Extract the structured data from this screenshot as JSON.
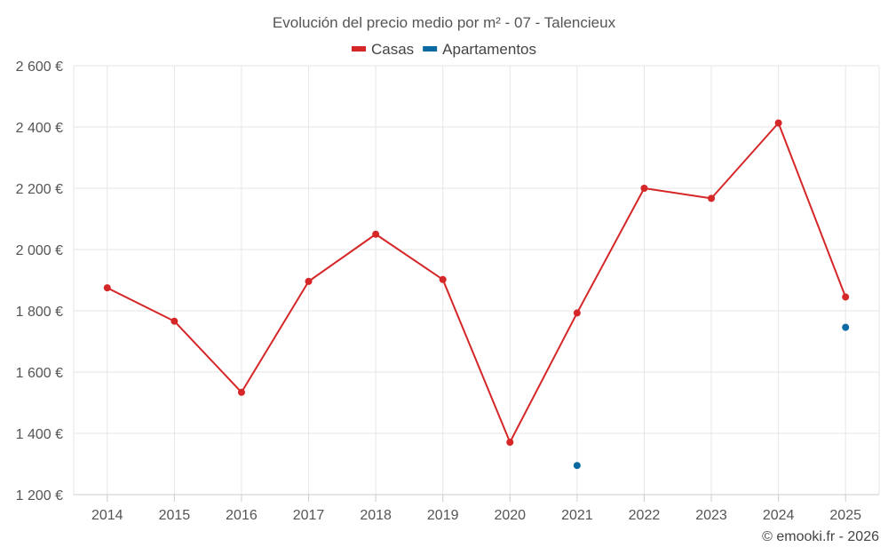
{
  "chart_data": {
    "type": "line",
    "title": "Evolución del precio medio por m² - 07 - Talencieux",
    "categories": [
      "2014",
      "2015",
      "2016",
      "2017",
      "2018",
      "2019",
      "2020",
      "2021",
      "2022",
      "2023",
      "2024",
      "2025"
    ],
    "series": [
      {
        "name": "Casas",
        "color": "#d62728",
        "values": [
          1875,
          1766,
          1534,
          1896,
          2050,
          1902,
          1371,
          1793,
          2200,
          2167,
          2413,
          1845
        ]
      },
      {
        "name": "Apartamentos",
        "color": "#0b6aa2",
        "values": [
          null,
          null,
          null,
          null,
          null,
          null,
          null,
          1295,
          null,
          null,
          null,
          1746
        ]
      }
    ],
    "ylim": [
      1200,
      2600
    ],
    "yticks": [
      1200,
      1400,
      1600,
      1800,
      2000,
      2200,
      2400,
      2600
    ],
    "ytick_labels": [
      "1 200 €",
      "1 400 €",
      "1 600 €",
      "1 800 €",
      "2 000 €",
      "2 200 €",
      "2 400 €",
      "2 600 €"
    ],
    "grid": true,
    "legend_position": "top-center",
    "xlabel": "",
    "ylabel": ""
  },
  "credit": "© emooki.fr - 2026"
}
